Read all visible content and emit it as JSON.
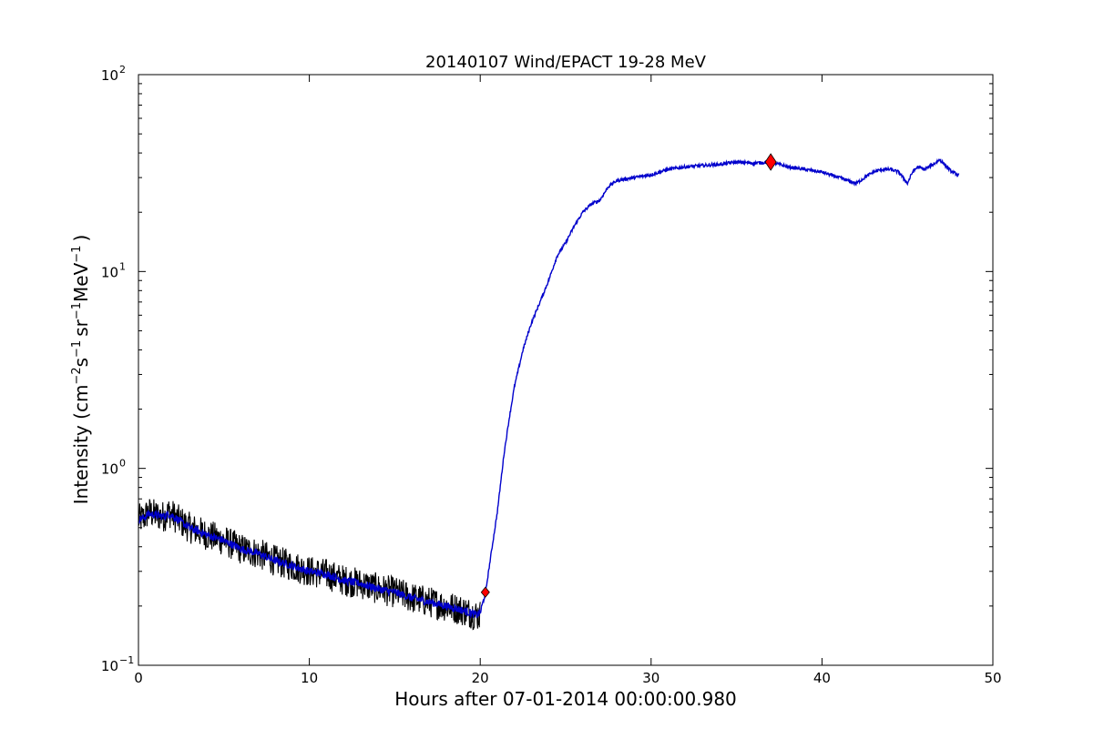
{
  "chart_data": {
    "type": "line",
    "title": "20140107 Wind/EPACT 19-28 MeV",
    "xlabel": "Hours after 07-01-2014 00:00:00.980",
    "ylabel": {
      "base": "Intensity (",
      "cm": "cm",
      "cm_exp": "−2",
      "s": "s",
      "s_exp": "−1",
      "sr": "sr",
      "sr_exp": "−1",
      "mev": "MeV",
      "mev_exp": "−1",
      "close": ")"
    },
    "xlim": [
      0,
      50
    ],
    "ylim": [
      0.1,
      100
    ],
    "yscale": "log",
    "grid": false,
    "x_ticks": [
      {
        "value": 0,
        "label": "0"
      },
      {
        "value": 10,
        "label": "10"
      },
      {
        "value": 20,
        "label": "20"
      },
      {
        "value": 30,
        "label": "30"
      },
      {
        "value": 40,
        "label": "40"
      },
      {
        "value": 50,
        "label": "50"
      }
    ],
    "y_ticks": [
      {
        "value": 0.1,
        "base": "10",
        "exp": "−1"
      },
      {
        "value": 1,
        "base": "10",
        "exp": "0"
      },
      {
        "value": 10,
        "base": "10",
        "exp": "1"
      },
      {
        "value": 100,
        "base": "10",
        "exp": "2"
      }
    ],
    "series": [
      {
        "color": "#000000",
        "noise_amp": 0.08,
        "x": [
          0,
          0.3,
          0.6,
          1.0,
          1.5,
          1.8,
          2.3,
          3.0,
          4.0,
          5.0,
          6.0,
          7.0,
          8.0,
          9.0,
          10.0,
          11.0,
          12.0,
          13.0,
          14.0,
          15.0,
          16.0,
          17.0,
          18.0,
          19.0,
          19.8,
          20.0
        ],
        "y": [
          0.55,
          0.56,
          0.6,
          0.58,
          0.57,
          0.6,
          0.55,
          0.5,
          0.46,
          0.43,
          0.39,
          0.37,
          0.34,
          0.32,
          0.3,
          0.29,
          0.27,
          0.26,
          0.245,
          0.235,
          0.22,
          0.21,
          0.2,
          0.19,
          0.18,
          0.18
        ]
      },
      {
        "color": "#0000cc",
        "noise_amp": 0.02,
        "x": [
          0,
          0.3,
          0.6,
          1.0,
          1.5,
          1.8,
          2.3,
          3.0,
          4.0,
          5.0,
          6.0,
          7.0,
          8.0,
          9.0,
          10.0,
          11.0,
          12.0,
          13.0,
          14.0,
          15.0,
          16.0,
          17.0,
          18.0,
          19.0,
          19.8,
          20.0,
          20.3,
          20.6,
          21.0,
          21.4,
          21.7,
          22.0,
          22.5,
          23.0,
          23.5,
          24.0,
          24.5,
          25.0,
          25.5,
          26.0,
          26.5,
          27.0,
          27.5,
          28.0,
          29.0,
          30.0,
          31.0,
          32.0,
          33.0,
          34.0,
          35.0,
          36.0,
          37.0,
          38.0,
          39.0,
          40.0,
          41.0,
          42.0,
          42.5,
          43.0,
          43.5,
          44.0,
          44.5,
          45.0,
          45.3,
          45.6,
          46.0,
          46.5,
          46.9,
          47.3,
          47.6,
          48.0
        ],
        "y": [
          0.55,
          0.56,
          0.59,
          0.58,
          0.57,
          0.59,
          0.55,
          0.5,
          0.46,
          0.43,
          0.39,
          0.37,
          0.34,
          0.32,
          0.3,
          0.29,
          0.27,
          0.26,
          0.245,
          0.235,
          0.22,
          0.21,
          0.2,
          0.19,
          0.18,
          0.185,
          0.23,
          0.35,
          0.6,
          1.2,
          1.8,
          2.6,
          4.0,
          5.5,
          7.0,
          9.0,
          12.0,
          14.0,
          17.0,
          20.0,
          22.0,
          23.0,
          27.0,
          29.0,
          30.0,
          31.0,
          33.0,
          34.0,
          34.5,
          35.0,
          36.0,
          35.5,
          36.0,
          34.0,
          33.0,
          32.0,
          30.0,
          28.0,
          30.0,
          32.0,
          33.0,
          33.0,
          32.0,
          28.0,
          32.0,
          34.0,
          33.0,
          35.0,
          37.0,
          34.0,
          32.0,
          31.0
        ]
      }
    ],
    "markers": [
      {
        "x": 20.3,
        "y": 0.235,
        "shape": "diamond",
        "color": "#ff0000",
        "size": "small"
      },
      {
        "x": 37.0,
        "y": 36.0,
        "shape": "diamond",
        "color": "#ff0000",
        "size": "large"
      }
    ]
  }
}
